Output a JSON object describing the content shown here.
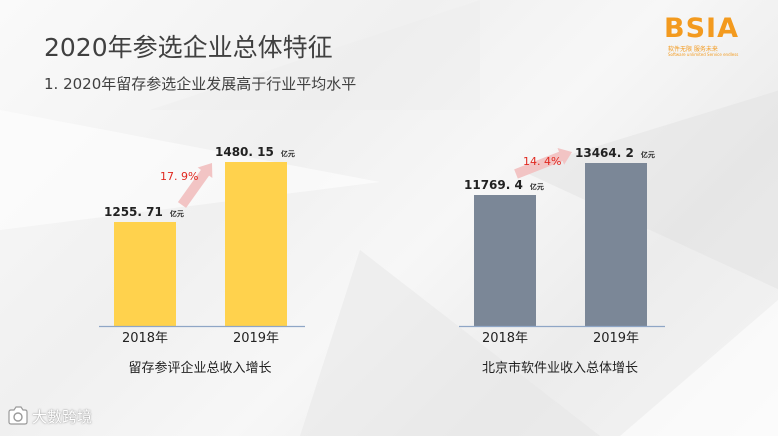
{
  "slide": {
    "title": "2020年参选企业总体特征",
    "subtitle": "1. 2020年留存参选企业发展高于行业平均水平"
  },
  "logo": {
    "mark": "BSIA",
    "cn_tagline": "软件无限  服务未来",
    "en_tagline": "Software unlimited  Service endless"
  },
  "watermark": {
    "text": "大數跨境",
    "icon": "camera-icon"
  },
  "colors": {
    "yellow": "#ffd24d",
    "slate": "#7b8797",
    "growth": "#e0281f",
    "arrow": "#f2c4c4",
    "axis": "#8fa6c6"
  },
  "chart_data": [
    {
      "type": "bar",
      "categories": [
        "2018年",
        "2019年"
      ],
      "values": [
        1255.71,
        1480.15
      ],
      "value_labels": [
        "1255. 71",
        "1480. 15"
      ],
      "unit": "亿元",
      "growth": "17. 9%",
      "caption": "留存参评企业总收入增长",
      "color": "#ffd24d"
    },
    {
      "type": "bar",
      "categories": [
        "2018年",
        "2019年"
      ],
      "values": [
        11769.4,
        13464.2
      ],
      "value_labels": [
        "11769. 4",
        "13464. 2"
      ],
      "unit": "亿元",
      "growth": "14. 4%",
      "caption": "北京市软件业收入总体增长",
      "color": "#7b8797"
    }
  ]
}
